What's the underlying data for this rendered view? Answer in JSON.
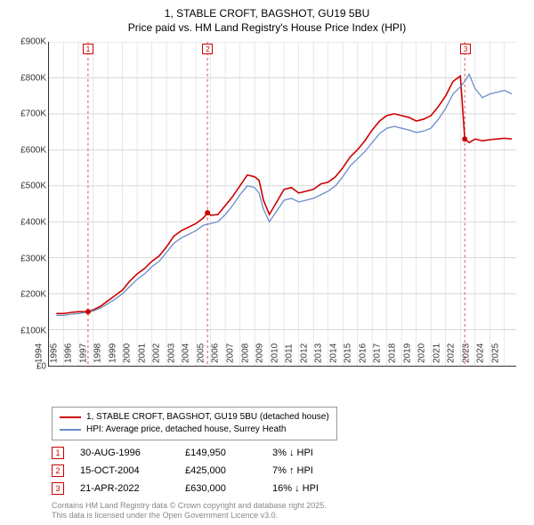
{
  "title": {
    "line1": "1, STABLE CROFT, BAGSHOT, GU19 5BU",
    "line2": "Price paid vs. HM Land Registry's House Price Index (HPI)",
    "fontsize": 12
  },
  "chart": {
    "type": "line",
    "background_color": "#ffffff",
    "grid_color": "#d8d8d8",
    "axis_color": "#333333",
    "font_color": "#333333",
    "tick_fontsize": 10,
    "x": {
      "min": 1994,
      "max": 2025.8,
      "ticks": [
        1994,
        1995,
        1996,
        1997,
        1998,
        1999,
        2000,
        2001,
        2002,
        2003,
        2004,
        2005,
        2006,
        2007,
        2008,
        2009,
        2010,
        2011,
        2012,
        2013,
        2014,
        2015,
        2016,
        2017,
        2018,
        2019,
        2020,
        2021,
        2022,
        2023,
        2024,
        2025
      ],
      "tick_labels": [
        "1994",
        "1995",
        "1996",
        "1997",
        "1998",
        "1999",
        "2000",
        "2001",
        "2002",
        "2003",
        "2004",
        "2005",
        "2006",
        "2007",
        "2008",
        "2009",
        "2010",
        "2011",
        "2012",
        "2013",
        "2014",
        "2015",
        "2016",
        "2017",
        "2018",
        "2019",
        "2020",
        "2021",
        "2022",
        "2023",
        "2024",
        "2025"
      ]
    },
    "y": {
      "min": 0,
      "max": 900000,
      "ticks": [
        0,
        100000,
        200000,
        300000,
        400000,
        500000,
        600000,
        700000,
        800000,
        900000
      ],
      "tick_labels": [
        "£0",
        "£100K",
        "£200K",
        "£300K",
        "£400K",
        "£500K",
        "£600K",
        "£700K",
        "£800K",
        "£900K"
      ]
    },
    "markers": [
      {
        "n": "1",
        "x": 1996.66,
        "color": "#cc0000"
      },
      {
        "n": "2",
        "x": 2004.79,
        "color": "#cc0000"
      },
      {
        "n": "3",
        "x": 2022.3,
        "color": "#cc0000"
      }
    ],
    "marker_line_color": "#e05050",
    "marker_line_dash": "3,3",
    "series": [
      {
        "name": "price_paid",
        "label": "1, STABLE CROFT, BAGSHOT, GU19 5BU (detached house)",
        "color": "#cc0000",
        "width": 1.6,
        "points": [
          [
            1994.5,
            145000
          ],
          [
            1995,
            145000
          ],
          [
            1995.5,
            148000
          ],
          [
            1996,
            150000
          ],
          [
            1996.66,
            149950
          ],
          [
            1997,
            155000
          ],
          [
            1997.5,
            165000
          ],
          [
            1998,
            180000
          ],
          [
            1998.5,
            195000
          ],
          [
            1999,
            210000
          ],
          [
            1999.5,
            235000
          ],
          [
            2000,
            255000
          ],
          [
            2000.5,
            270000
          ],
          [
            2001,
            290000
          ],
          [
            2001.5,
            305000
          ],
          [
            2002,
            330000
          ],
          [
            2002.5,
            360000
          ],
          [
            2003,
            375000
          ],
          [
            2003.5,
            385000
          ],
          [
            2004,
            395000
          ],
          [
            2004.5,
            410000
          ],
          [
            2004.79,
            425000
          ],
          [
            2005,
            418000
          ],
          [
            2005.5,
            420000
          ],
          [
            2006,
            445000
          ],
          [
            2006.5,
            470000
          ],
          [
            2007,
            500000
          ],
          [
            2007.5,
            530000
          ],
          [
            2008,
            525000
          ],
          [
            2008.3,
            515000
          ],
          [
            2008.6,
            460000
          ],
          [
            2009,
            420000
          ],
          [
            2009.5,
            455000
          ],
          [
            2010,
            490000
          ],
          [
            2010.5,
            495000
          ],
          [
            2011,
            480000
          ],
          [
            2011.5,
            485000
          ],
          [
            2012,
            490000
          ],
          [
            2012.5,
            505000
          ],
          [
            2013,
            510000
          ],
          [
            2013.5,
            525000
          ],
          [
            2014,
            550000
          ],
          [
            2014.5,
            580000
          ],
          [
            2015,
            600000
          ],
          [
            2015.5,
            625000
          ],
          [
            2016,
            655000
          ],
          [
            2016.5,
            680000
          ],
          [
            2017,
            695000
          ],
          [
            2017.5,
            700000
          ],
          [
            2018,
            695000
          ],
          [
            2018.5,
            690000
          ],
          [
            2019,
            680000
          ],
          [
            2019.5,
            685000
          ],
          [
            2020,
            695000
          ],
          [
            2020.5,
            720000
          ],
          [
            2021,
            750000
          ],
          [
            2021.5,
            790000
          ],
          [
            2022,
            805000
          ],
          [
            2022.3,
            630000
          ],
          [
            2022.6,
            620000
          ],
          [
            2023,
            630000
          ],
          [
            2023.5,
            625000
          ],
          [
            2024,
            628000
          ],
          [
            2024.5,
            630000
          ],
          [
            2025,
            632000
          ],
          [
            2025.5,
            630000
          ]
        ]
      },
      {
        "name": "hpi",
        "label": "HPI: Average price, detached house, Surrey Heath",
        "color": "#6a8dc8",
        "width": 1.3,
        "points": [
          [
            1994.5,
            140000
          ],
          [
            1995,
            140000
          ],
          [
            1995.5,
            143000
          ],
          [
            1996,
            145000
          ],
          [
            1996.5,
            148000
          ],
          [
            1997,
            152000
          ],
          [
            1997.5,
            160000
          ],
          [
            1998,
            172000
          ],
          [
            1998.5,
            185000
          ],
          [
            1999,
            200000
          ],
          [
            1999.5,
            220000
          ],
          [
            2000,
            240000
          ],
          [
            2000.5,
            255000
          ],
          [
            2001,
            275000
          ],
          [
            2001.5,
            290000
          ],
          [
            2002,
            315000
          ],
          [
            2002.5,
            340000
          ],
          [
            2003,
            355000
          ],
          [
            2003.5,
            365000
          ],
          [
            2004,
            375000
          ],
          [
            2004.5,
            390000
          ],
          [
            2005,
            395000
          ],
          [
            2005.5,
            400000
          ],
          [
            2006,
            420000
          ],
          [
            2006.5,
            445000
          ],
          [
            2007,
            475000
          ],
          [
            2007.5,
            500000
          ],
          [
            2008,
            495000
          ],
          [
            2008.3,
            480000
          ],
          [
            2008.6,
            435000
          ],
          [
            2009,
            400000
          ],
          [
            2009.5,
            430000
          ],
          [
            2010,
            460000
          ],
          [
            2010.5,
            465000
          ],
          [
            2011,
            455000
          ],
          [
            2011.5,
            460000
          ],
          [
            2012,
            465000
          ],
          [
            2012.5,
            475000
          ],
          [
            2013,
            485000
          ],
          [
            2013.5,
            500000
          ],
          [
            2014,
            525000
          ],
          [
            2014.5,
            555000
          ],
          [
            2015,
            575000
          ],
          [
            2015.5,
            595000
          ],
          [
            2016,
            620000
          ],
          [
            2016.5,
            645000
          ],
          [
            2017,
            660000
          ],
          [
            2017.5,
            665000
          ],
          [
            2018,
            660000
          ],
          [
            2018.5,
            655000
          ],
          [
            2019,
            648000
          ],
          [
            2019.5,
            652000
          ],
          [
            2020,
            660000
          ],
          [
            2020.5,
            685000
          ],
          [
            2021,
            715000
          ],
          [
            2021.5,
            755000
          ],
          [
            2022,
            775000
          ],
          [
            2022.3,
            790000
          ],
          [
            2022.6,
            810000
          ],
          [
            2023,
            770000
          ],
          [
            2023.5,
            745000
          ],
          [
            2024,
            755000
          ],
          [
            2024.5,
            760000
          ],
          [
            2025,
            765000
          ],
          [
            2025.5,
            755000
          ]
        ]
      }
    ]
  },
  "legend": {
    "border_color": "#999999",
    "fontsize": 10
  },
  "transactions": [
    {
      "n": "1",
      "date": "30-AUG-1996",
      "price": "£149,950",
      "diff": "3% ↓ HPI"
    },
    {
      "n": "2",
      "date": "15-OCT-2004",
      "price": "£425,000",
      "diff": "7% ↑ HPI"
    },
    {
      "n": "3",
      "date": "21-APR-2022",
      "price": "£630,000",
      "diff": "16% ↓ HPI"
    }
  ],
  "footer": {
    "line1": "Contains HM Land Registry data © Crown copyright and database right 2025.",
    "line2": "This data is licensed under the Open Government Licence v3.0.",
    "color": "#888888",
    "fontsize": 9
  }
}
